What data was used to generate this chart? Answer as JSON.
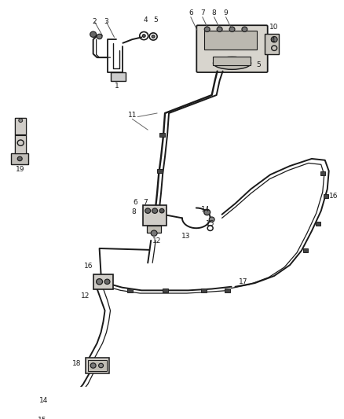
{
  "bg_color": "#ffffff",
  "line_color": "#1a1a1a",
  "label_color": "#1a1a1a",
  "fig_width": 4.38,
  "fig_height": 5.33
}
